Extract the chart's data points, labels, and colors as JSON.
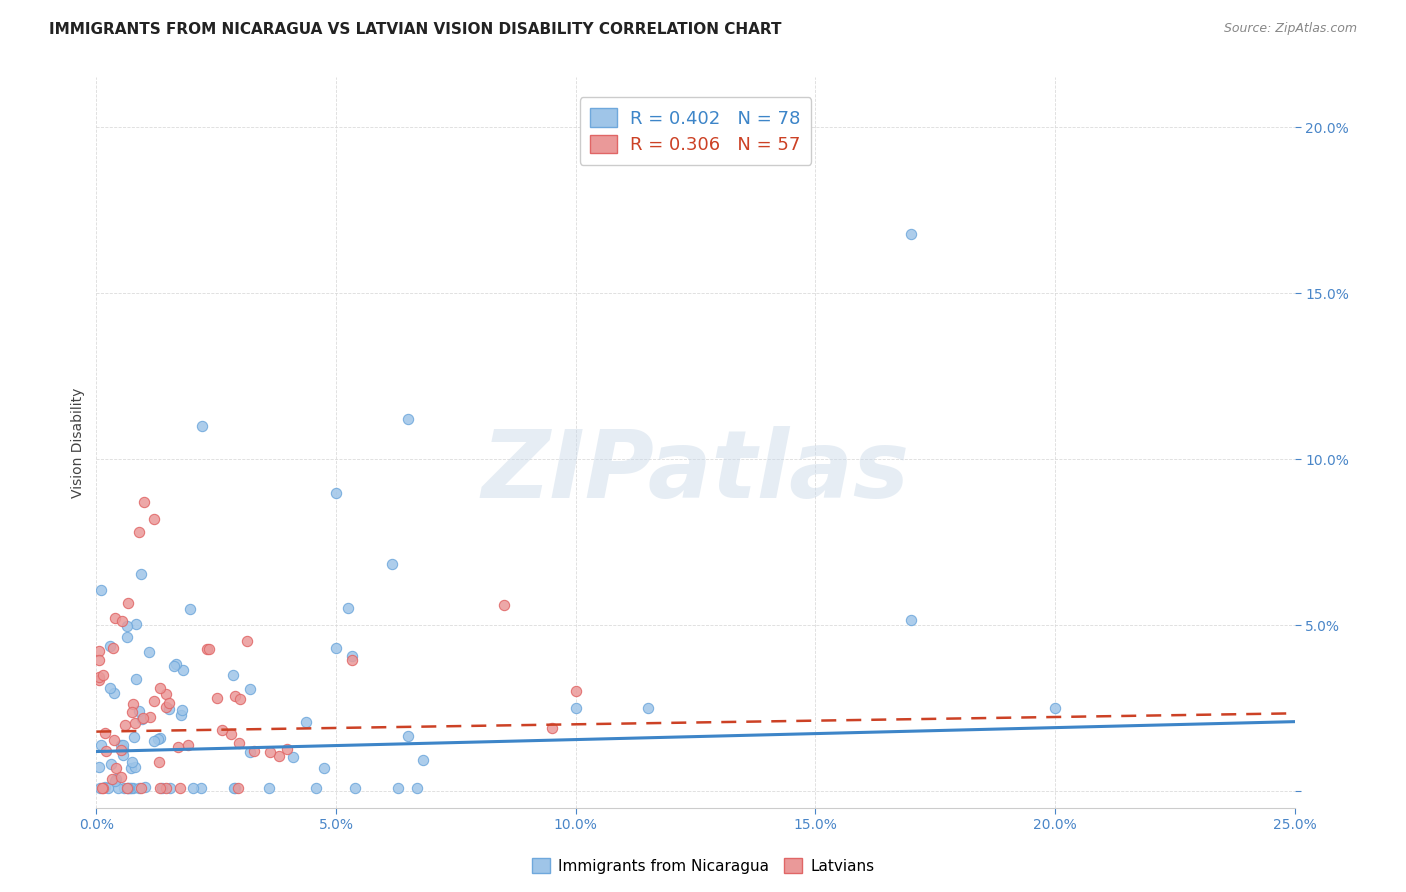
{
  "title": "IMMIGRANTS FROM NICARAGUA VS LATVIAN VISION DISABILITY CORRELATION CHART",
  "source": "Source: ZipAtlas.com",
  "ylabel": "Vision Disability",
  "xlim": [
    0.0,
    0.25
  ],
  "ylim": [
    -0.005,
    0.215
  ],
  "background_color": "#ffffff",
  "watermark_text": "ZIPatlas",
  "series": [
    {
      "name": "Immigrants from Nicaragua",
      "R": 0.402,
      "N": 78,
      "dot_color": "#9fc5e8",
      "dot_edge_color": "#6fa8dc",
      "line_color": "#3d85c8",
      "line_style": "solid",
      "reg_slope": 0.036,
      "reg_intercept": 0.012
    },
    {
      "name": "Latvians",
      "R": 0.306,
      "N": 57,
      "dot_color": "#ea9999",
      "dot_edge_color": "#e06666",
      "line_color": "#cc4125",
      "line_style": "dashed",
      "reg_slope": 0.022,
      "reg_intercept": 0.018
    }
  ],
  "xticks": [
    0.0,
    0.05,
    0.1,
    0.15,
    0.2,
    0.25
  ],
  "xtick_labels": [
    "0.0%",
    "5.0%",
    "10.0%",
    "15.0%",
    "20.0%",
    "25.0%"
  ],
  "yticks": [
    0.0,
    0.05,
    0.1,
    0.15,
    0.2
  ],
  "ytick_labels": [
    "",
    "5.0%",
    "10.0%",
    "15.0%",
    "20.0%"
  ],
  "tick_color": "#4a86c8",
  "grid_color": "#d8d8d8",
  "title_fontsize": 11,
  "source_fontsize": 9,
  "axis_label_fontsize": 10,
  "tick_fontsize": 10,
  "legend_fontsize": 13
}
